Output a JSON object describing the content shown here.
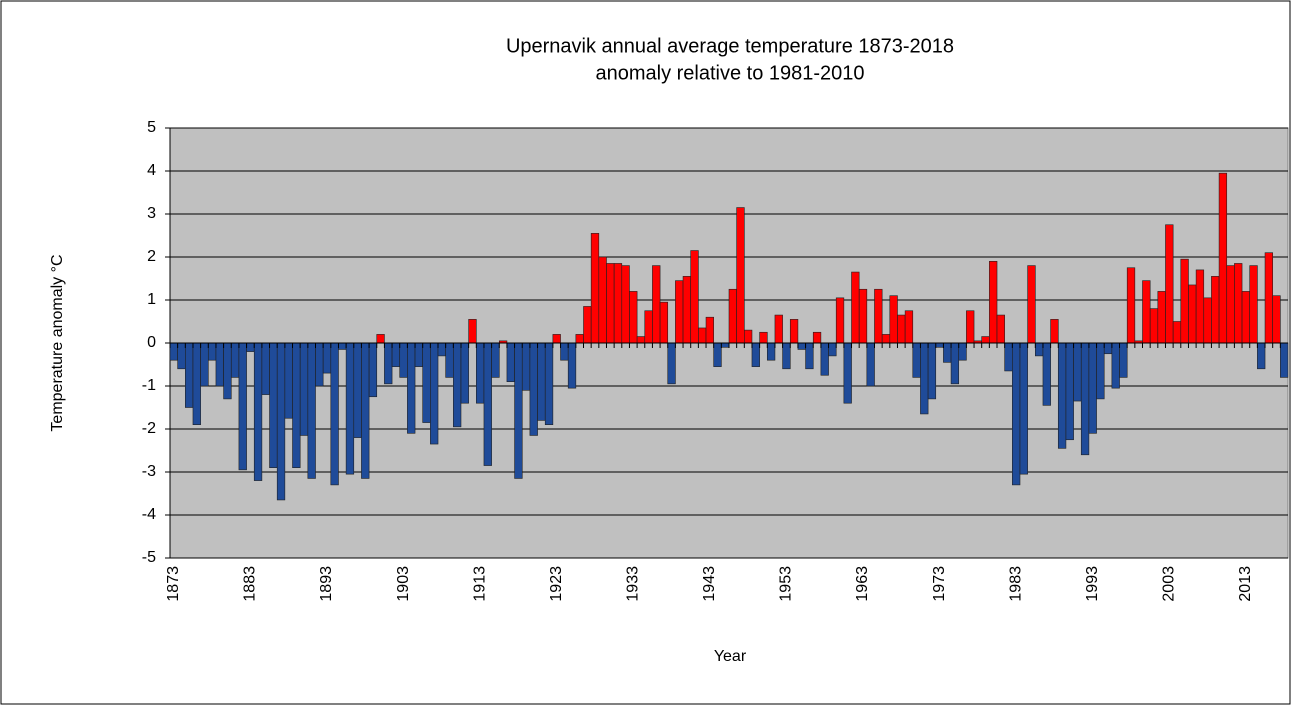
{
  "chart_data": {
    "type": "bar",
    "title": "Upernavik annual average temperature 1873-2018",
    "subtitle": "anomaly relative to 1981-2010",
    "x_label": "Year",
    "y_label": "Temperature anomaly °C",
    "categories": [
      "1873",
      null,
      null,
      null,
      null,
      null,
      null,
      null,
      null,
      null,
      "1883",
      null,
      null,
      null,
      null,
      null,
      null,
      null,
      null,
      null,
      "1893",
      null,
      null,
      null,
      null,
      null,
      null,
      null,
      null,
      null,
      "1903",
      null,
      null,
      null,
      null,
      null,
      null,
      null,
      null,
      null,
      "1913",
      null,
      null,
      null,
      null,
      null,
      null,
      null,
      null,
      null,
      "1923",
      null,
      null,
      null,
      null,
      null,
      null,
      null,
      null,
      null,
      "1933",
      null,
      null,
      null,
      null,
      null,
      null,
      null,
      null,
      null,
      "1943",
      null,
      null,
      null,
      null,
      null,
      null,
      null,
      null,
      null,
      "1953",
      null,
      null,
      null,
      null,
      null,
      null,
      null,
      null,
      null,
      "1963",
      null,
      null,
      null,
      null,
      null,
      null,
      null,
      null,
      null,
      "1973",
      null,
      null,
      null,
      null,
      null,
      null,
      null,
      null,
      null,
      "1983",
      null,
      null,
      null,
      null,
      null,
      null,
      null,
      null,
      null,
      "1993",
      null,
      null,
      null,
      null,
      null,
      null,
      null,
      null,
      null,
      "2003",
      null,
      null,
      null,
      null,
      null,
      null,
      null,
      null,
      null,
      "2013",
      null,
      null,
      null,
      null,
      null
    ],
    "values": [
      -0.4,
      -0.6,
      -1.5,
      -1.9,
      -1.0,
      -0.4,
      -1.0,
      -1.3,
      -0.8,
      -2.95,
      -0.2,
      -3.2,
      -1.2,
      -2.9,
      -3.65,
      -1.75,
      -2.9,
      -2.15,
      -3.15,
      -1.0,
      -0.7,
      -3.3,
      -0.15,
      -3.05,
      -2.2,
      -3.15,
      -1.25,
      0.2,
      -0.95,
      -0.55,
      -0.8,
      -2.1,
      -0.55,
      -1.85,
      -2.35,
      -0.3,
      -0.8,
      -1.95,
      -1.4,
      0.55,
      -1.4,
      -2.85,
      -0.8,
      0.05,
      -0.9,
      -3.15,
      -1.1,
      -2.15,
      -1.8,
      -1.9,
      0.2,
      -0.4,
      -1.05,
      0.2,
      0.85,
      2.55,
      2.0,
      1.85,
      1.85,
      1.8,
      1.2,
      0.15,
      0.75,
      1.8,
      0.95,
      -0.95,
      1.45,
      1.55,
      2.15,
      0.35,
      0.6,
      -0.55,
      -0.1,
      1.25,
      3.15,
      0.3,
      -0.55,
      0.25,
      -0.4,
      0.65,
      -0.6,
      0.55,
      -0.15,
      -0.6,
      0.25,
      -0.75,
      -0.3,
      1.05,
      -1.4,
      1.65,
      1.25,
      -1.0,
      1.25,
      0.2,
      1.1,
      0.65,
      0.75,
      -0.8,
      -1.65,
      -1.3,
      -0.1,
      -0.45,
      -0.95,
      -0.4,
      0.75,
      0.05,
      0.15,
      1.9,
      0.65,
      -0.65,
      -3.3,
      -3.05,
      1.8,
      -0.3,
      -1.45,
      0.55,
      -2.45,
      -2.25,
      -1.35,
      -2.6,
      -2.1,
      -1.3,
      -0.25,
      -1.05,
      -0.8,
      1.75,
      0.05,
      1.45,
      0.8,
      1.2,
      2.75,
      0.5,
      1.95,
      1.35,
      1.7,
      1.05,
      1.55,
      3.95,
      1.8,
      1.85,
      1.2,
      1.8,
      -0.6,
      2.1,
      1.1,
      -0.8
    ],
    "positive_color": "#ff0000",
    "negative_color": "#1f4b99",
    "plot_background": "#c0c0c0",
    "ylim": [
      -5,
      5
    ],
    "yticks": [
      -5,
      -4,
      -3,
      -2,
      -1,
      0,
      1,
      2,
      3,
      4,
      5
    ],
    "grid": true
  }
}
